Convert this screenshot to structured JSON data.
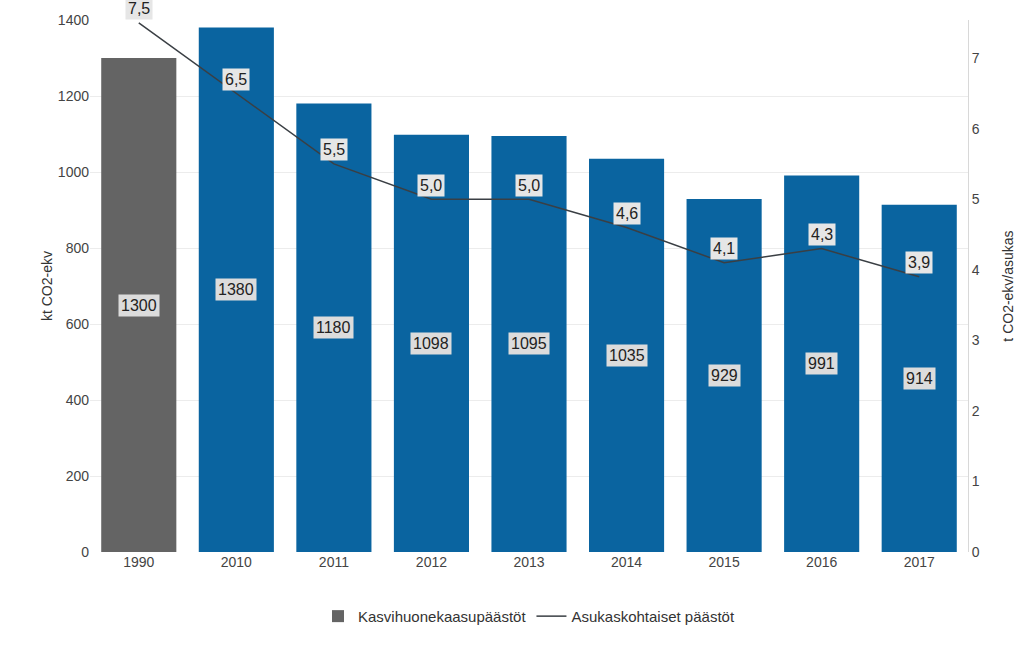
{
  "chart_data": {
    "type": "bar",
    "categories": [
      "1990",
      "2010",
      "2011",
      "2012",
      "2013",
      "2014",
      "2015",
      "2016",
      "2017"
    ],
    "series": [
      {
        "name": "Kasvihuonekaasupäästöt",
        "type": "bar",
        "values": [
          1300,
          1380,
          1180,
          1098,
          1095,
          1035,
          929,
          991,
          914
        ],
        "colors": [
          "#646464",
          "#0a64a0",
          "#0a64a0",
          "#0a64a0",
          "#0a64a0",
          "#0a64a0",
          "#0a64a0",
          "#0a64a0",
          "#0a64a0"
        ]
      },
      {
        "name": "Asukaskohtaiset päästöt",
        "type": "line",
        "axis": "y2",
        "color": "#3a3f44",
        "values": [
          7.5,
          6.5,
          5.5,
          5.0,
          5.0,
          4.6,
          4.1,
          4.3,
          3.9
        ],
        "value_labels": [
          "7,5",
          "6,5",
          "5,5",
          "5,0",
          "5,0",
          "4,6",
          "4,1",
          "4,3",
          "3,9"
        ]
      }
    ],
    "y_label": "kt CO2-ekv",
    "y2_label": "t CO2-ekv/asukas",
    "ylim": [
      0,
      1400
    ],
    "yticks": [
      0,
      200,
      400,
      600,
      800,
      1000,
      1200,
      1400
    ],
    "y2lim": [
      0,
      7.54
    ],
    "y2ticks": [
      0,
      1,
      2,
      3,
      4,
      5,
      6,
      7
    ],
    "grid": true,
    "legend": "bottom",
    "data_labels": true
  }
}
